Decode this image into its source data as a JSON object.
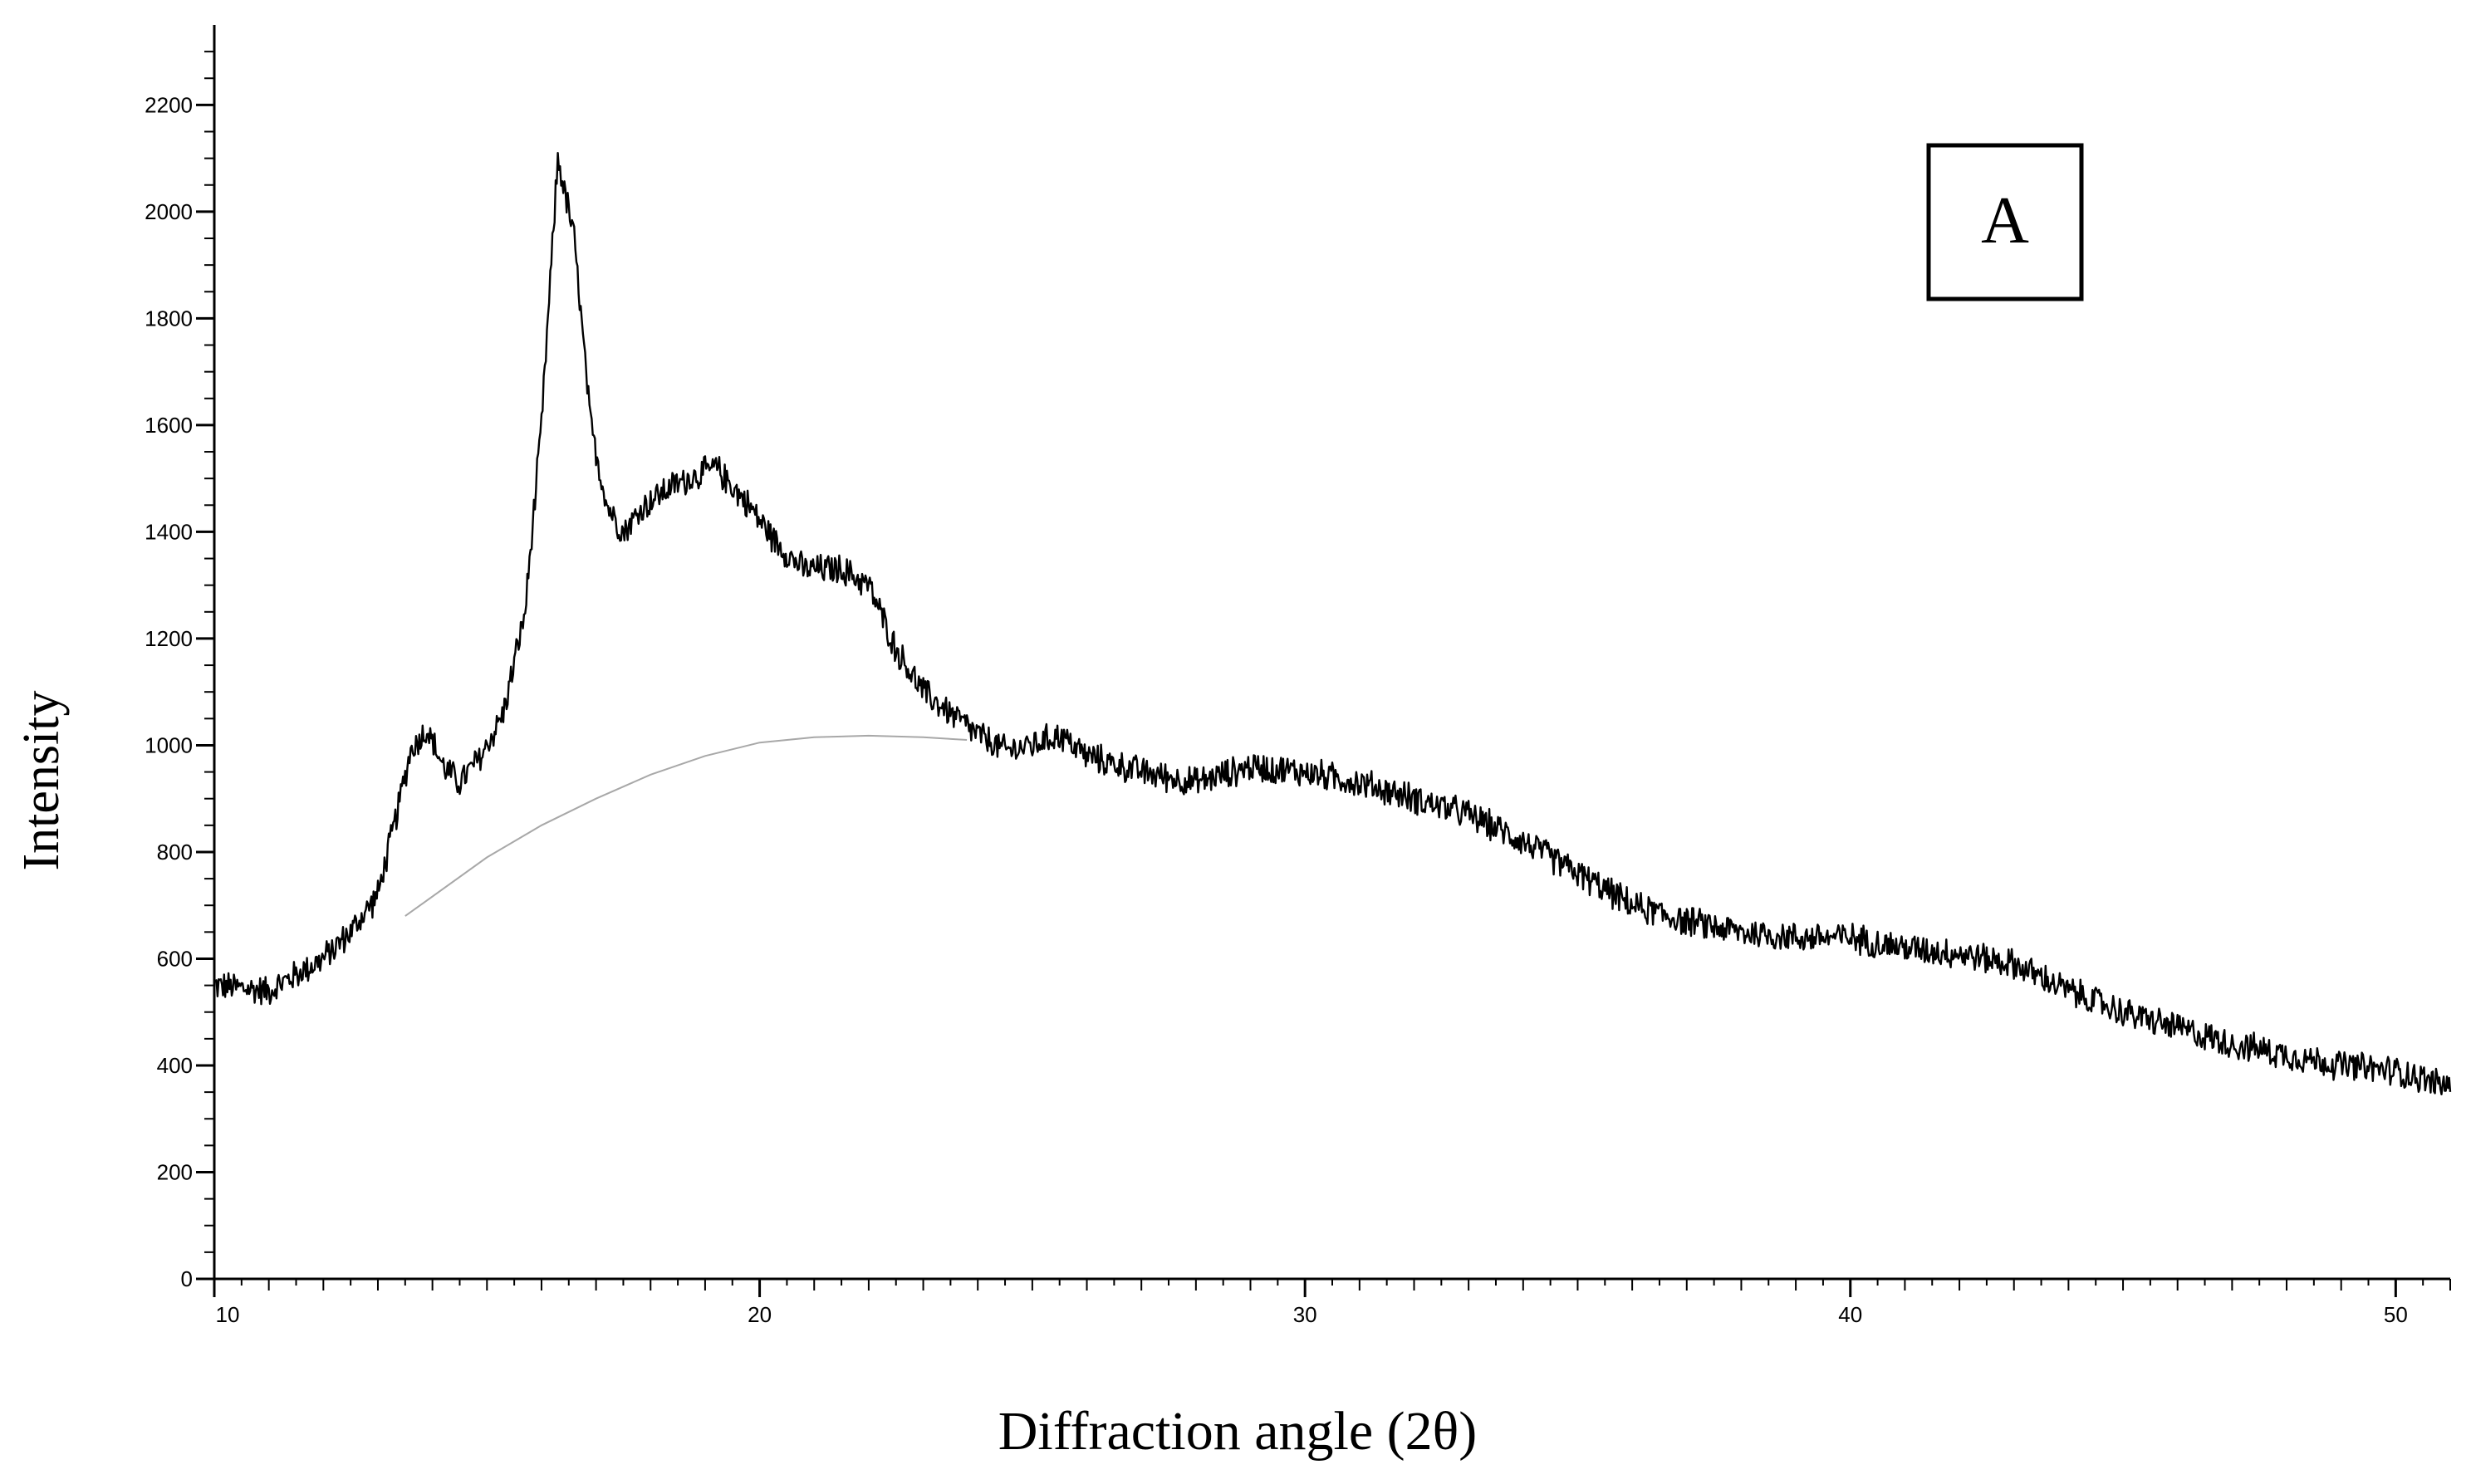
{
  "chart_data": {
    "type": "line",
    "xlabel": "Diffraction angle (2θ)",
    "ylabel": "Intensity",
    "xlim": [
      10,
      51
    ],
    "ylim": [
      0,
      2350
    ],
    "x_ticks": [
      10,
      20,
      30,
      40,
      50
    ],
    "y_ticks": [
      0,
      200,
      400,
      600,
      800,
      1000,
      1200,
      1400,
      1600,
      1800,
      2000,
      2200
    ],
    "x_tick_labels": [
      "10",
      "20",
      "30",
      "40",
      "50"
    ],
    "y_tick_labels": [
      "0",
      "200",
      "400",
      "600",
      "800",
      "1000",
      "1200",
      "1400",
      "1600",
      "1800",
      "2000",
      "2200"
    ],
    "panel_label": "A",
    "grid": false,
    "series": [
      {
        "style": "noisy-black",
        "noise": 32,
        "x": [
          10,
          11,
          11.5,
          12,
          12.5,
          13,
          13.3,
          13.6,
          13.9,
          14.2,
          14.5,
          14.9,
          15.3,
          15.7,
          16,
          16.3,
          16.6,
          16.9,
          17.2,
          17.5,
          17.9,
          18.3,
          18.7,
          19.2,
          19.8,
          20.3,
          20.8,
          21.5,
          22,
          22.5,
          23,
          23.5,
          24,
          24.5,
          25,
          25.5,
          26,
          27,
          28,
          29,
          30,
          31,
          32,
          33,
          34,
          35,
          36,
          37,
          38,
          39,
          40,
          41,
          42,
          43,
          44,
          45,
          46,
          47,
          48,
          49,
          50,
          51
        ],
        "y": [
          550,
          540,
          570,
          600,
          650,
          720,
          850,
          990,
          1030,
          960,
          930,
          980,
          1060,
          1250,
          1600,
          2100,
          1950,
          1600,
          1450,
          1400,
          1450,
          1480,
          1500,
          1520,
          1450,
          1380,
          1330,
          1330,
          1300,
          1180,
          1100,
          1060,
          1020,
          990,
          1000,
          1020,
          980,
          950,
          930,
          960,
          950,
          930,
          900,
          870,
          820,
          760,
          700,
          670,
          650,
          640,
          640,
          620,
          610,
          590,
          540,
          500,
          470,
          440,
          420,
          400,
          390,
          360
        ]
      },
      {
        "style": "baseline-grey",
        "noise": 0,
        "x": [
          13.5,
          15,
          16,
          17,
          18,
          19,
          20,
          21,
          22,
          23,
          23.8
        ],
        "y": [
          680,
          790,
          850,
          900,
          945,
          980,
          1005,
          1015,
          1018,
          1015,
          1010
        ]
      }
    ]
  }
}
